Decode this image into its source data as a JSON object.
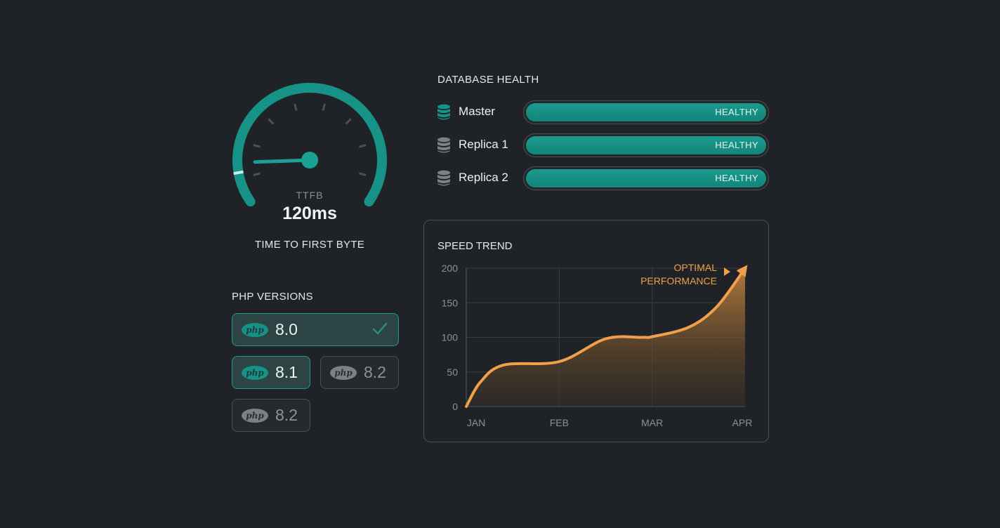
{
  "gauge": {
    "label": "TTFB",
    "value": "120ms",
    "caption": "TIME TO FIRST BYTE",
    "level": 0.1,
    "accent_color": "#169286"
  },
  "php": {
    "title": "PHP VERSIONS",
    "logo_text": "php",
    "buttons": [
      {
        "version": "8.0",
        "state": "active",
        "selected": true
      },
      {
        "version": "8.1",
        "state": "active",
        "selected": false
      },
      {
        "version": "8.2",
        "state": "inactive",
        "selected": false
      },
      {
        "version": "8.2",
        "state": "inactive",
        "selected": false
      }
    ]
  },
  "db": {
    "title": "DATABASE HEALTH",
    "items": [
      {
        "name": "Master",
        "status": "HEALTHY",
        "icon": "database-icon",
        "icon_color": "#169286"
      },
      {
        "name": "Replica 1",
        "status": "HEALTHY",
        "icon": "database-icon",
        "icon_color": "#7c8186"
      },
      {
        "name": "Replica 2",
        "status": "HEALTHY",
        "icon": "database-icon",
        "icon_color": "#7c8186"
      }
    ]
  },
  "chart_data": {
    "type": "area",
    "title": "SPEED TREND",
    "categories": [
      "JAN",
      "FEB",
      "MAR",
      "APR"
    ],
    "x": [
      0,
      0.15,
      0.4,
      1,
      1.5,
      1.9,
      2,
      2.4,
      2.7,
      3
    ],
    "values": [
      0,
      35,
      60,
      65,
      98,
      100,
      101,
      115,
      145,
      200
    ],
    "ylim": [
      0,
      200
    ],
    "yticks": [
      0,
      50,
      100,
      150,
      200
    ],
    "grid": true,
    "annotation": [
      "OPTIMAL",
      "PERFORMANCE"
    ],
    "line_color": "#f0a04b"
  }
}
